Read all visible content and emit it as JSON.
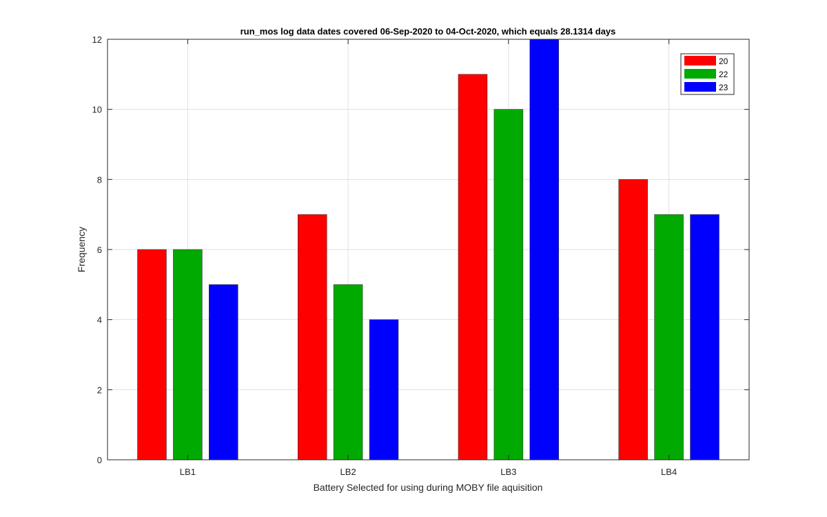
{
  "chart_data": {
    "type": "bar",
    "title": "run_mos log data  dates covered 06-Sep-2020 to 04-Oct-2020, which equals 28.1314 days",
    "xlabel": "Battery Selected for using during MOBY file aquisition",
    "ylabel": "Frequency",
    "categories": [
      "LB1",
      "LB2",
      "LB3",
      "LB4"
    ],
    "ylim": [
      0,
      12
    ],
    "yticks": [
      0,
      2,
      4,
      6,
      8,
      10,
      12
    ],
    "grid": true,
    "legend_position": "top-right",
    "series": [
      {
        "name": "20",
        "color": "#ff0000",
        "values": [
          6,
          7,
          11,
          8
        ]
      },
      {
        "name": "22",
        "color": "#00aa00",
        "values": [
          6,
          5,
          10,
          7
        ]
      },
      {
        "name": "23",
        "color": "#0000ff",
        "values": [
          5,
          4,
          12,
          7
        ]
      }
    ]
  }
}
